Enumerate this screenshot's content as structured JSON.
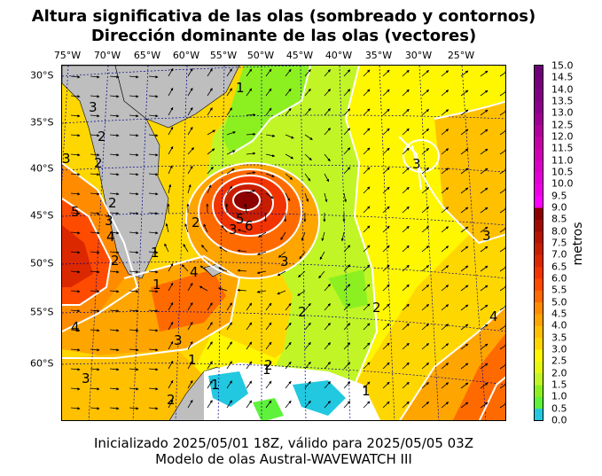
{
  "title_line1": "Altura significativa de las olas (sombreado y contornos)",
  "title_line2": "Dirección dominante de las olas (vectores)",
  "footer_line1": "Inicializado 2025/05/01 18Z, válido para 2025/05/05 03Z",
  "footer_line2": "Modelo de olas Austral-WAVEWATCH III",
  "longitude_labels": [
    "75°W",
    "70°W",
    "65°W",
    "60°W",
    "55°W",
    "50°W",
    "45°W",
    "40°W",
    "35°W",
    "30°W",
    "25°W"
  ],
  "latitude_labels": [
    "30°S",
    "35°S",
    "40°S",
    "45°S",
    "50°S",
    "55°S",
    "60°S"
  ],
  "colorbar": {
    "unit_label": "metros",
    "ticks": [
      "0.0",
      "0.5",
      "1.0",
      "1.5",
      "2.0",
      "2.5",
      "3.0",
      "3.5",
      "4.0",
      "4.5",
      "5.0",
      "5.5",
      "6.0",
      "6.5",
      "7.0",
      "7.5",
      "8.0",
      "8.5",
      "9.0",
      "9.5",
      "10.0",
      "10.5",
      "11.0",
      "11.5",
      "12.0",
      "12.5",
      "13.0",
      "13.5",
      "14.0",
      "14.5",
      "15.0"
    ],
    "colors": [
      "#22c8e0",
      "#5ef23a",
      "#8cf020",
      "#c2f526",
      "#e6f80e",
      "#fff700",
      "#ffd700",
      "#ffc000",
      "#ffa500",
      "#ff8c00",
      "#ff6a00",
      "#ff4b00",
      "#f23400",
      "#dc2800",
      "#c81e00",
      "#b41400",
      "#a00a00",
      "#8c0000",
      "#ff00ff",
      "#f000e8",
      "#e600d8",
      "#dc00c8",
      "#d200b4",
      "#c800a8",
      "#b4009c",
      "#a00094",
      "#8c008c",
      "#820084",
      "#78007c",
      "#6e0078"
    ]
  },
  "contour_labels": [
    "1",
    "1",
    "1",
    "1",
    "1",
    "1",
    "1",
    "2",
    "2",
    "2",
    "2",
    "2",
    "2",
    "2",
    "2",
    "2",
    "3",
    "3",
    "3",
    "3",
    "3",
    "3",
    "3",
    "3",
    "3",
    "4",
    "4",
    "4",
    "4",
    "5",
    "5",
    "6"
  ],
  "legend_colors": {
    "land": "#bebebe",
    "ice_coast": "#22c8e0",
    "contour": "#ffffff",
    "grid": "#00008b"
  }
}
